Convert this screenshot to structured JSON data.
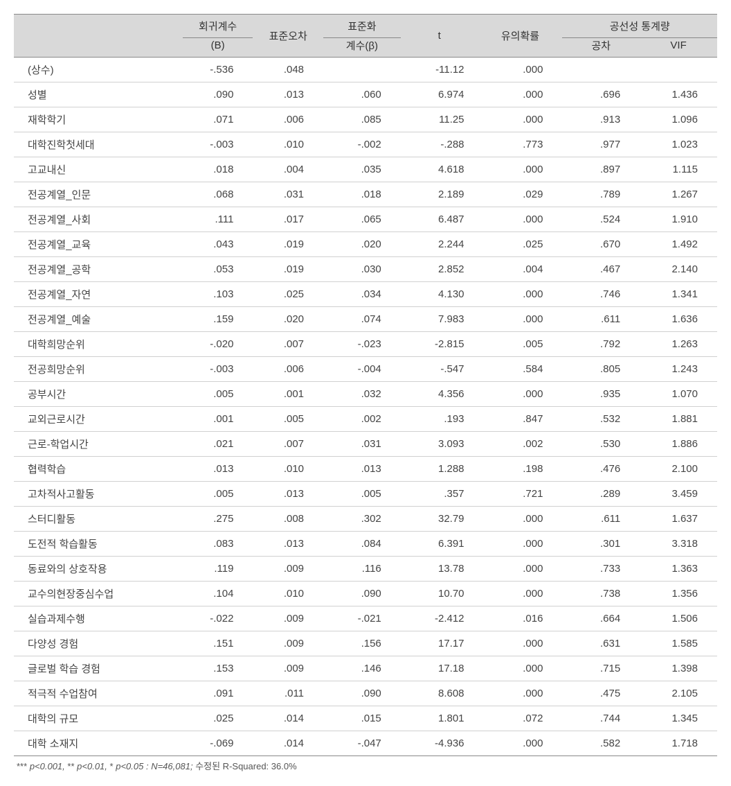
{
  "header": {
    "blank": "",
    "B_top": "회귀계수",
    "B_bot": "(B)",
    "SE": "표준오차",
    "beta_top": "표준화",
    "beta_bot": "계수(β)",
    "t": "t",
    "p": "유의확률",
    "coll_top": "공선성 통계량",
    "tol": "공차",
    "vif": "VIF"
  },
  "rows": [
    {
      "label": "(상수)",
      "B": "-.536",
      "SE": ".048",
      "beta": "",
      "t": "-11.12",
      "p": ".000",
      "tol": "",
      "vif": ""
    },
    {
      "label": "성별",
      "B": ".090",
      "SE": ".013",
      "beta": ".060",
      "t": "6.974",
      "p": ".000",
      "tol": ".696",
      "vif": "1.436"
    },
    {
      "label": "재학학기",
      "B": ".071",
      "SE": ".006",
      "beta": ".085",
      "t": "11.25",
      "p": ".000",
      "tol": ".913",
      "vif": "1.096"
    },
    {
      "label": "대학진학첫세대",
      "B": "-.003",
      "SE": ".010",
      "beta": "-.002",
      "t": "-.288",
      "p": ".773",
      "tol": ".977",
      "vif": "1.023"
    },
    {
      "label": "고교내신",
      "B": ".018",
      "SE": ".004",
      "beta": ".035",
      "t": "4.618",
      "p": ".000",
      "tol": ".897",
      "vif": "1.115"
    },
    {
      "label": "전공계열_인문",
      "B": ".068",
      "SE": ".031",
      "beta": ".018",
      "t": "2.189",
      "p": ".029",
      "tol": ".789",
      "vif": "1.267"
    },
    {
      "label": "전공계열_사회",
      "B": ".111",
      "SE": ".017",
      "beta": ".065",
      "t": "6.487",
      "p": ".000",
      "tol": ".524",
      "vif": "1.910"
    },
    {
      "label": "전공계열_교육",
      "B": ".043",
      "SE": ".019",
      "beta": ".020",
      "t": "2.244",
      "p": ".025",
      "tol": ".670",
      "vif": "1.492"
    },
    {
      "label": "전공계열_공학",
      "B": ".053",
      "SE": ".019",
      "beta": ".030",
      "t": "2.852",
      "p": ".004",
      "tol": ".467",
      "vif": "2.140"
    },
    {
      "label": "전공계열_자연",
      "B": ".103",
      "SE": ".025",
      "beta": ".034",
      "t": "4.130",
      "p": ".000",
      "tol": ".746",
      "vif": "1.341"
    },
    {
      "label": "전공계열_예술",
      "B": ".159",
      "SE": ".020",
      "beta": ".074",
      "t": "7.983",
      "p": ".000",
      "tol": ".611",
      "vif": "1.636"
    },
    {
      "label": "대학희망순위",
      "B": "-.020",
      "SE": ".007",
      "beta": "-.023",
      "t": "-2.815",
      "p": ".005",
      "tol": ".792",
      "vif": "1.263"
    },
    {
      "label": "전공희망순위",
      "B": "-.003",
      "SE": ".006",
      "beta": "-.004",
      "t": "-.547",
      "p": ".584",
      "tol": ".805",
      "vif": "1.243"
    },
    {
      "label": "공부시간",
      "B": ".005",
      "SE": ".001",
      "beta": ".032",
      "t": "4.356",
      "p": ".000",
      "tol": ".935",
      "vif": "1.070"
    },
    {
      "label": "교외근로시간",
      "B": ".001",
      "SE": ".005",
      "beta": ".002",
      "t": ".193",
      "p": ".847",
      "tol": ".532",
      "vif": "1.881"
    },
    {
      "label": "근로-학업시간",
      "B": ".021",
      "SE": ".007",
      "beta": ".031",
      "t": "3.093",
      "p": ".002",
      "tol": ".530",
      "vif": "1.886"
    },
    {
      "label": "협력학습",
      "B": ".013",
      "SE": ".010",
      "beta": ".013",
      "t": "1.288",
      "p": ".198",
      "tol": ".476",
      "vif": "2.100"
    },
    {
      "label": "고차적사고활동",
      "B": ".005",
      "SE": ".013",
      "beta": ".005",
      "t": ".357",
      "p": ".721",
      "tol": ".289",
      "vif": "3.459"
    },
    {
      "label": "스터디활동",
      "B": ".275",
      "SE": ".008",
      "beta": ".302",
      "t": "32.79",
      "p": ".000",
      "tol": ".611",
      "vif": "1.637"
    },
    {
      "label": "도전적 학습활동",
      "B": ".083",
      "SE": ".013",
      "beta": ".084",
      "t": "6.391",
      "p": ".000",
      "tol": ".301",
      "vif": "3.318"
    },
    {
      "label": "동료와의 상호작용",
      "B": ".119",
      "SE": ".009",
      "beta": ".116",
      "t": "13.78",
      "p": ".000",
      "tol": ".733",
      "vif": "1.363"
    },
    {
      "label": "교수의현장중심수업",
      "B": ".104",
      "SE": ".010",
      "beta": ".090",
      "t": "10.70",
      "p": ".000",
      "tol": ".738",
      "vif": "1.356"
    },
    {
      "label": "실습과제수행",
      "B": "-.022",
      "SE": ".009",
      "beta": "-.021",
      "t": "-2.412",
      "p": ".016",
      "tol": ".664",
      "vif": "1.506"
    },
    {
      "label": "다양성 경험",
      "B": ".151",
      "SE": ".009",
      "beta": ".156",
      "t": "17.17",
      "p": ".000",
      "tol": ".631",
      "vif": "1.585"
    },
    {
      "label": "글로벌 학습 경험",
      "B": ".153",
      "SE": ".009",
      "beta": ".146",
      "t": "17.18",
      "p": ".000",
      "tol": ".715",
      "vif": "1.398"
    },
    {
      "label": "적극적 수업참여",
      "B": ".091",
      "SE": ".011",
      "beta": ".090",
      "t": "8.608",
      "p": ".000",
      "tol": ".475",
      "vif": "2.105"
    },
    {
      "label": "대학의 규모",
      "B": ".025",
      "SE": ".014",
      "beta": ".015",
      "t": "1.801",
      "p": ".072",
      "tol": ".744",
      "vif": "1.345"
    },
    {
      "label": "대학 소재지",
      "B": "-.069",
      "SE": ".014",
      "beta": "-.047",
      "t": "-4.936",
      "p": ".000",
      "tol": ".582",
      "vif": "1.718"
    }
  ],
  "footnote": {
    "sig3": "***",
    "p3": "p<0.001,",
    "sig2": "**",
    "p2": "p<0.01,",
    "sig1": "*",
    "p1": "p<0.05 :",
    "N_label": "N=46,081;",
    "rsq": "수정된 R-Squared: 36.0%"
  }
}
